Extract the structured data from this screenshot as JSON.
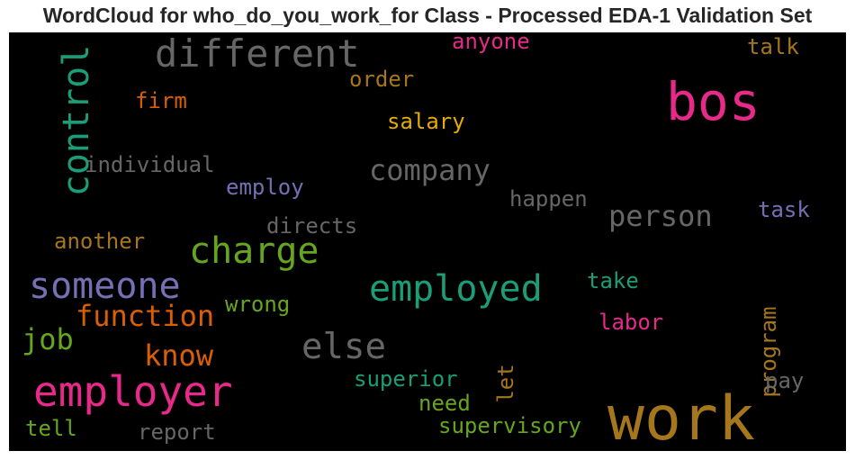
{
  "chart_data": {
    "type": "wordcloud",
    "title": "WordCloud for who_do_you_work_for Class - Processed EDA-1 Validation Set",
    "background": "#000000",
    "palette": [
      "#1b9e77",
      "#d95f02",
      "#7570b3",
      "#e7298a",
      "#66a61e",
      "#e6ab02",
      "#a6761d",
      "#666666"
    ],
    "words": [
      {
        "text": "work",
        "color": "#a6761d"
      },
      {
        "text": "bos",
        "color": "#e7298a"
      },
      {
        "text": "employer",
        "color": "#e7298a"
      },
      {
        "text": "different",
        "color": "#666666"
      },
      {
        "text": "control",
        "color": "#1b9e77"
      },
      {
        "text": "employed",
        "color": "#1b9e77"
      },
      {
        "text": "someone",
        "color": "#7570b3"
      },
      {
        "text": "charge",
        "color": "#66a61e"
      },
      {
        "text": "else",
        "color": "#666666"
      },
      {
        "text": "company",
        "color": "#666666"
      },
      {
        "text": "function",
        "color": "#d95f02"
      },
      {
        "text": "person",
        "color": "#666666"
      },
      {
        "text": "know",
        "color": "#d95f02"
      },
      {
        "text": "job",
        "color": "#66a61e"
      },
      {
        "text": "individual",
        "color": "#666666"
      },
      {
        "text": "salary",
        "color": "#e6ab02"
      },
      {
        "text": "firm",
        "color": "#d95f02"
      },
      {
        "text": "order",
        "color": "#a6761d"
      },
      {
        "text": "anyone",
        "color": "#e7298a"
      },
      {
        "text": "talk",
        "color": "#a6761d"
      },
      {
        "text": "employ",
        "color": "#7570b3"
      },
      {
        "text": "happen",
        "color": "#666666"
      },
      {
        "text": "task",
        "color": "#7570b3"
      },
      {
        "text": "directs",
        "color": "#666666"
      },
      {
        "text": "another",
        "color": "#a6761d"
      },
      {
        "text": "wrong",
        "color": "#66a61e"
      },
      {
        "text": "take",
        "color": "#1b9e77"
      },
      {
        "text": "program",
        "color": "#a6761d"
      },
      {
        "text": "labor",
        "color": "#e7298a"
      },
      {
        "text": "let",
        "color": "#a6761d"
      },
      {
        "text": "superior",
        "color": "#1b9e77"
      },
      {
        "text": "need",
        "color": "#66a61e"
      },
      {
        "text": "pay",
        "color": "#666666"
      },
      {
        "text": "supervisory",
        "color": "#66a61e"
      },
      {
        "text": "report",
        "color": "#666666"
      },
      {
        "text": "tell",
        "color": "#66a61e"
      }
    ]
  }
}
